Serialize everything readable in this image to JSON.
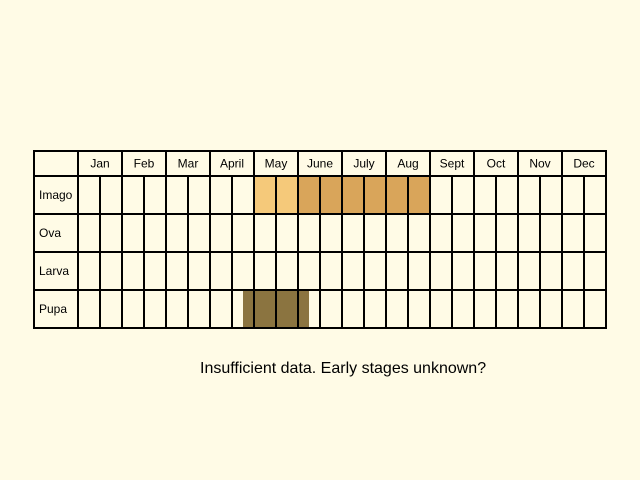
{
  "chart_data": {
    "type": "heatmap",
    "title": "",
    "months": [
      "Jan",
      "Feb",
      "Mar",
      "April",
      "May",
      "June",
      "July",
      "Aug",
      "Sept",
      "Oct",
      "Nov",
      "Dec"
    ],
    "subdivisions_per_month": 2,
    "stages": [
      {
        "name": "Imago",
        "periods": [
          {
            "start": 4.0,
            "end": 5.0,
            "color": "#f5c97a"
          },
          {
            "start": 5.0,
            "end": 8.0,
            "color": "#d9a55a"
          }
        ]
      },
      {
        "name": "Ova",
        "periods": []
      },
      {
        "name": "Larva",
        "periods": []
      },
      {
        "name": "Pupa",
        "periods": [
          {
            "start": 3.75,
            "end": 5.25,
            "color": "#8b7440"
          }
        ]
      }
    ],
    "grid": true
  },
  "note": "Insufficient data. Early stages unknown?"
}
